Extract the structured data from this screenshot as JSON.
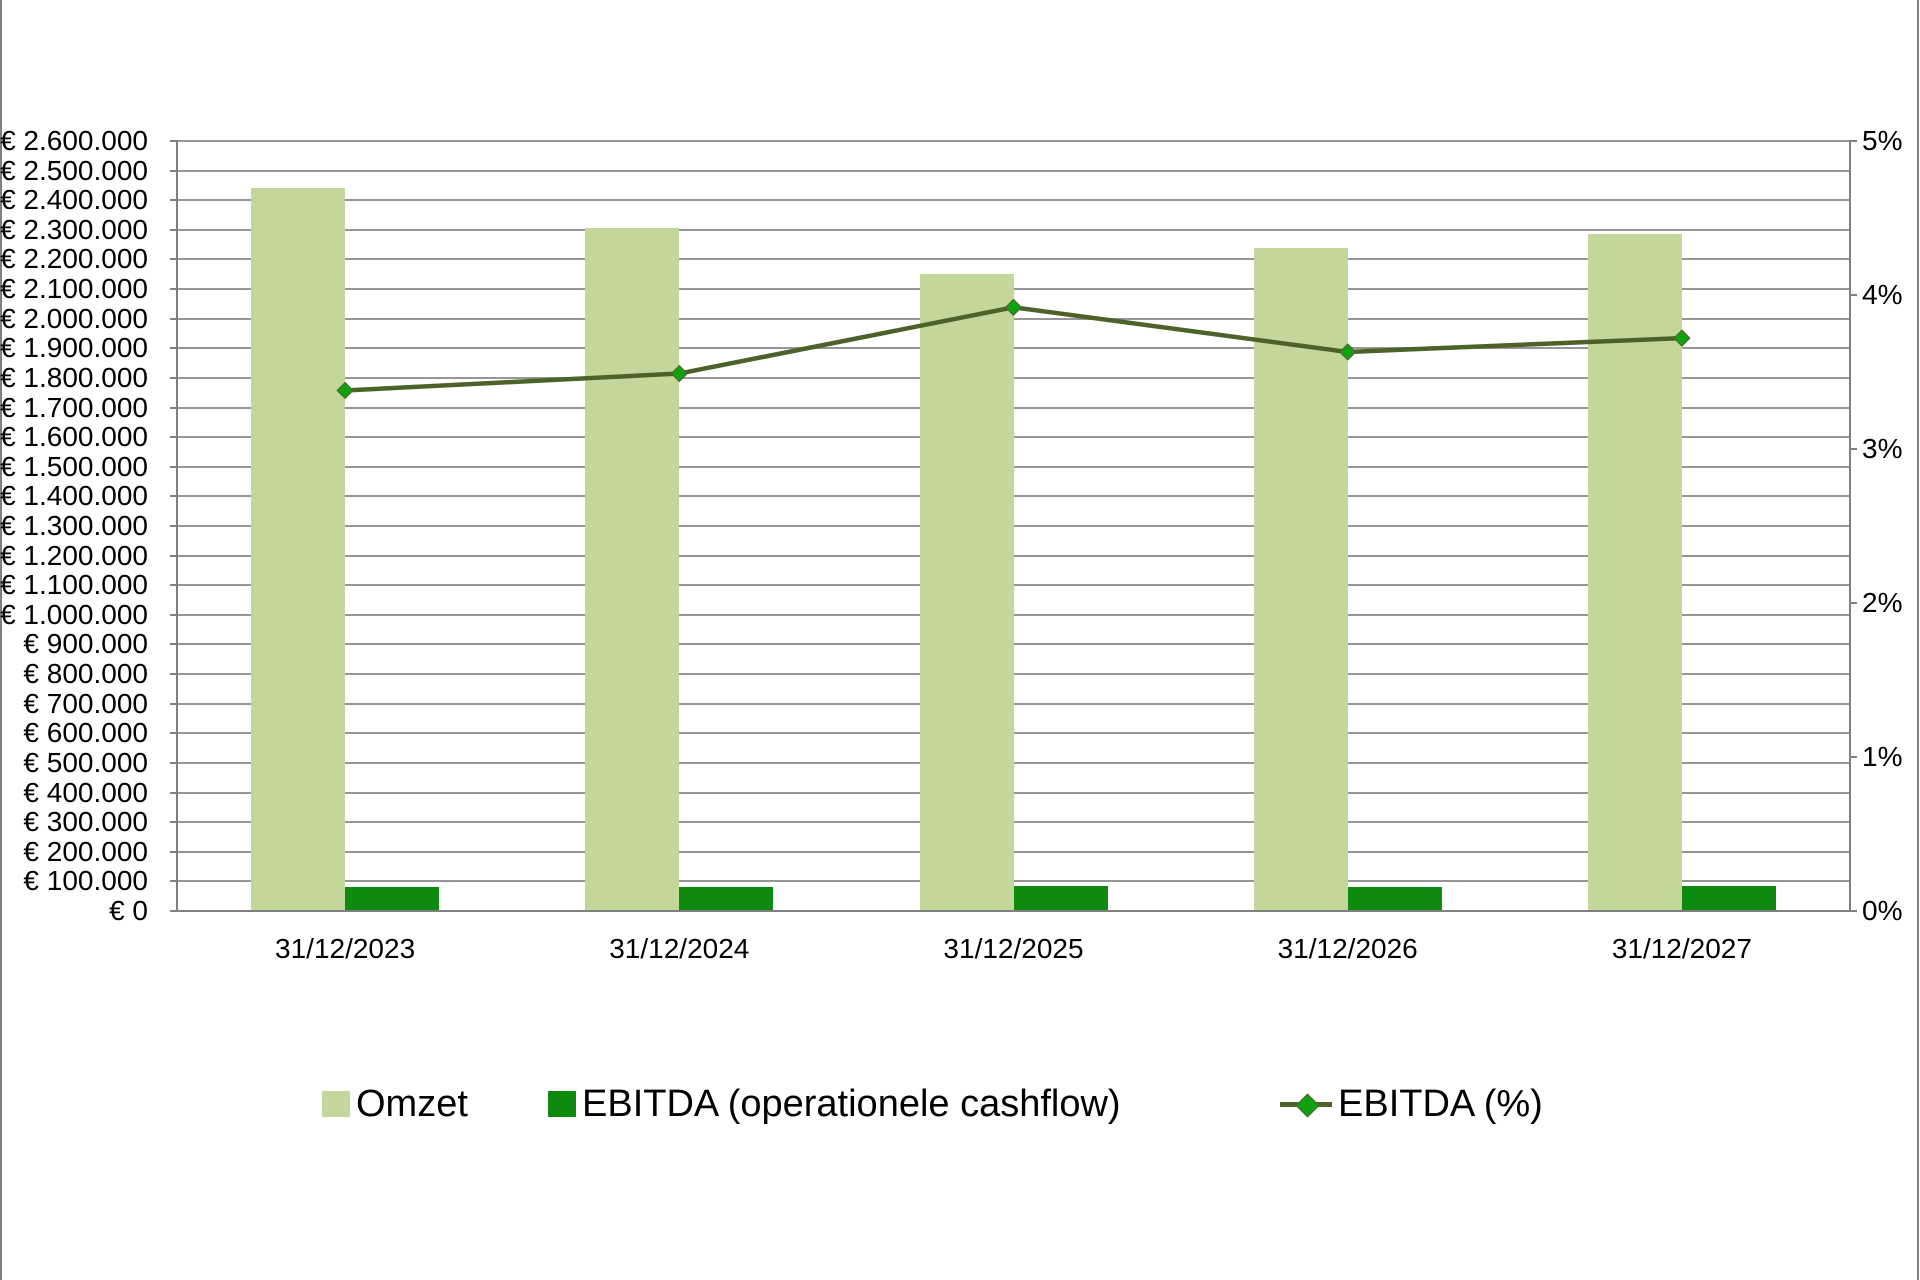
{
  "page": {
    "background": "#ffffff",
    "side_border_color": "#7f7f7f"
  },
  "chart_data": {
    "type": "combo-bar-line",
    "title": "",
    "categories": [
      "31/12/2023",
      "31/12/2024",
      "31/12/2025",
      "31/12/2026",
      "31/12/2027"
    ],
    "series": [
      {
        "name": "Omzet",
        "type": "bar",
        "axis": "left",
        "color": "#c4d79b",
        "values": [
          2440000,
          2305000,
          2150000,
          2240000,
          2285000
        ]
      },
      {
        "name": "EBITDA (operationele cashflow)",
        "type": "bar",
        "axis": "left",
        "color": "#0e8b0e",
        "values": [
          82000,
          80000,
          84000,
          81000,
          85000
        ]
      },
      {
        "name": "EBITDA (%)",
        "type": "line",
        "axis": "right",
        "color": "#4d6228",
        "marker": "diamond",
        "marker_color": "#10a010",
        "values": [
          3.38,
          3.49,
          3.92,
          3.63,
          3.72
        ]
      }
    ],
    "left_axis": {
      "min": 0,
      "max": 2600000,
      "step": 100000,
      "tick_labels": [
        "€ 0",
        "€ 100.000",
        "€ 200.000",
        "€ 300.000",
        "€ 400.000",
        "€ 500.000",
        "€ 600.000",
        "€ 700.000",
        "€ 800.000",
        "€ 900.000",
        "€ 1.000.000",
        "€ 1.100.000",
        "€ 1.200.000",
        "€ 1.300.000",
        "€ 1.400.000",
        "€ 1.500.000",
        "€ 1.600.000",
        "€ 1.700.000",
        "€ 1.800.000",
        "€ 1.900.000",
        "€ 2.000.000",
        "€ 2.100.000",
        "€ 2.200.000",
        "€ 2.300.000",
        "€ 2.400.000",
        "€ 2.500.000",
        "€ 2.600.000"
      ]
    },
    "right_axis": {
      "min": 0,
      "max": 5,
      "step": 1,
      "tick_labels": [
        "0%",
        "1%",
        "2%",
        "3%",
        "4%",
        "5%"
      ]
    },
    "gridlines": true,
    "gridline_color": "#969696",
    "axis_color": "#7f7f7f",
    "legend_position": "bottom"
  }
}
